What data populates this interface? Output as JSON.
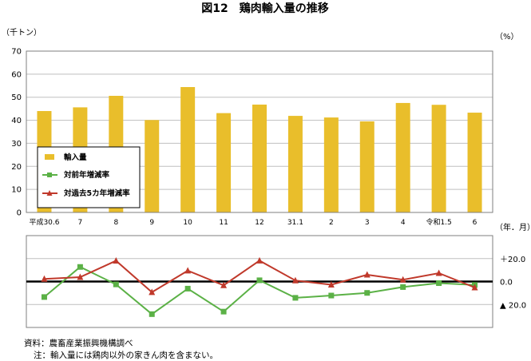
{
  "title": "図12　鶏肉輸入量の推移",
  "footer": {
    "source": "資料：農畜産業振興機構調べ",
    "note": "注：輸入量には鶏肉以外の家きん肉を含まない。"
  },
  "chart_data": [
    {
      "type": "bar",
      "categories": [
        "平成30.6",
        "7",
        "8",
        "9",
        "10",
        "11",
        "12",
        "31.1",
        "2",
        "3",
        "4",
        "令和1.5",
        "6"
      ],
      "series": [
        {
          "name": "輸入量",
          "values": [
            44,
            45.6,
            50.6,
            40.1,
            54.4,
            43.1,
            46.8,
            41.9,
            41.2,
            39.5,
            47.5,
            46.7,
            43.3
          ],
          "color": "#E9BE2B"
        }
      ],
      "ylabel": "（千トン）",
      "xlabel": "（年．月）",
      "ylim": [
        0,
        70
      ],
      "yticks": [
        0,
        10,
        20,
        30,
        40,
        50,
        60,
        70
      ],
      "grid": true,
      "legend": "left-bottom"
    },
    {
      "type": "line",
      "categories": [
        "平成30.6",
        "7",
        "8",
        "9",
        "10",
        "11",
        "12",
        "31.1",
        "2",
        "3",
        "4",
        "令和1.5",
        "6"
      ],
      "series": [
        {
          "name": "対前年増減率",
          "values": [
            -13.5,
            12.7,
            -2.5,
            -28.4,
            -6.2,
            -26.2,
            1.1,
            -14.2,
            -12.2,
            -9.9,
            -4.8,
            -1.4,
            -3.0
          ],
          "color": "#5BB146",
          "marker": "square"
        },
        {
          "name": "対過去5カ年増減率",
          "values": [
            2.3,
            3.8,
            18.1,
            -9.3,
            9.5,
            -3.3,
            18.2,
            0.9,
            -2.8,
            5.9,
            1.6,
            7.3,
            -5.2
          ],
          "color": "#C0392B",
          "marker": "triangle"
        }
      ],
      "ylabel": "（%）",
      "ylim": [
        -40,
        40
      ],
      "yticks": [
        20,
        0,
        -20
      ],
      "ytick_labels": [
        "＋20.0",
        "0.0",
        "▲ 20.0"
      ],
      "grid": true,
      "zero_line": true
    }
  ]
}
